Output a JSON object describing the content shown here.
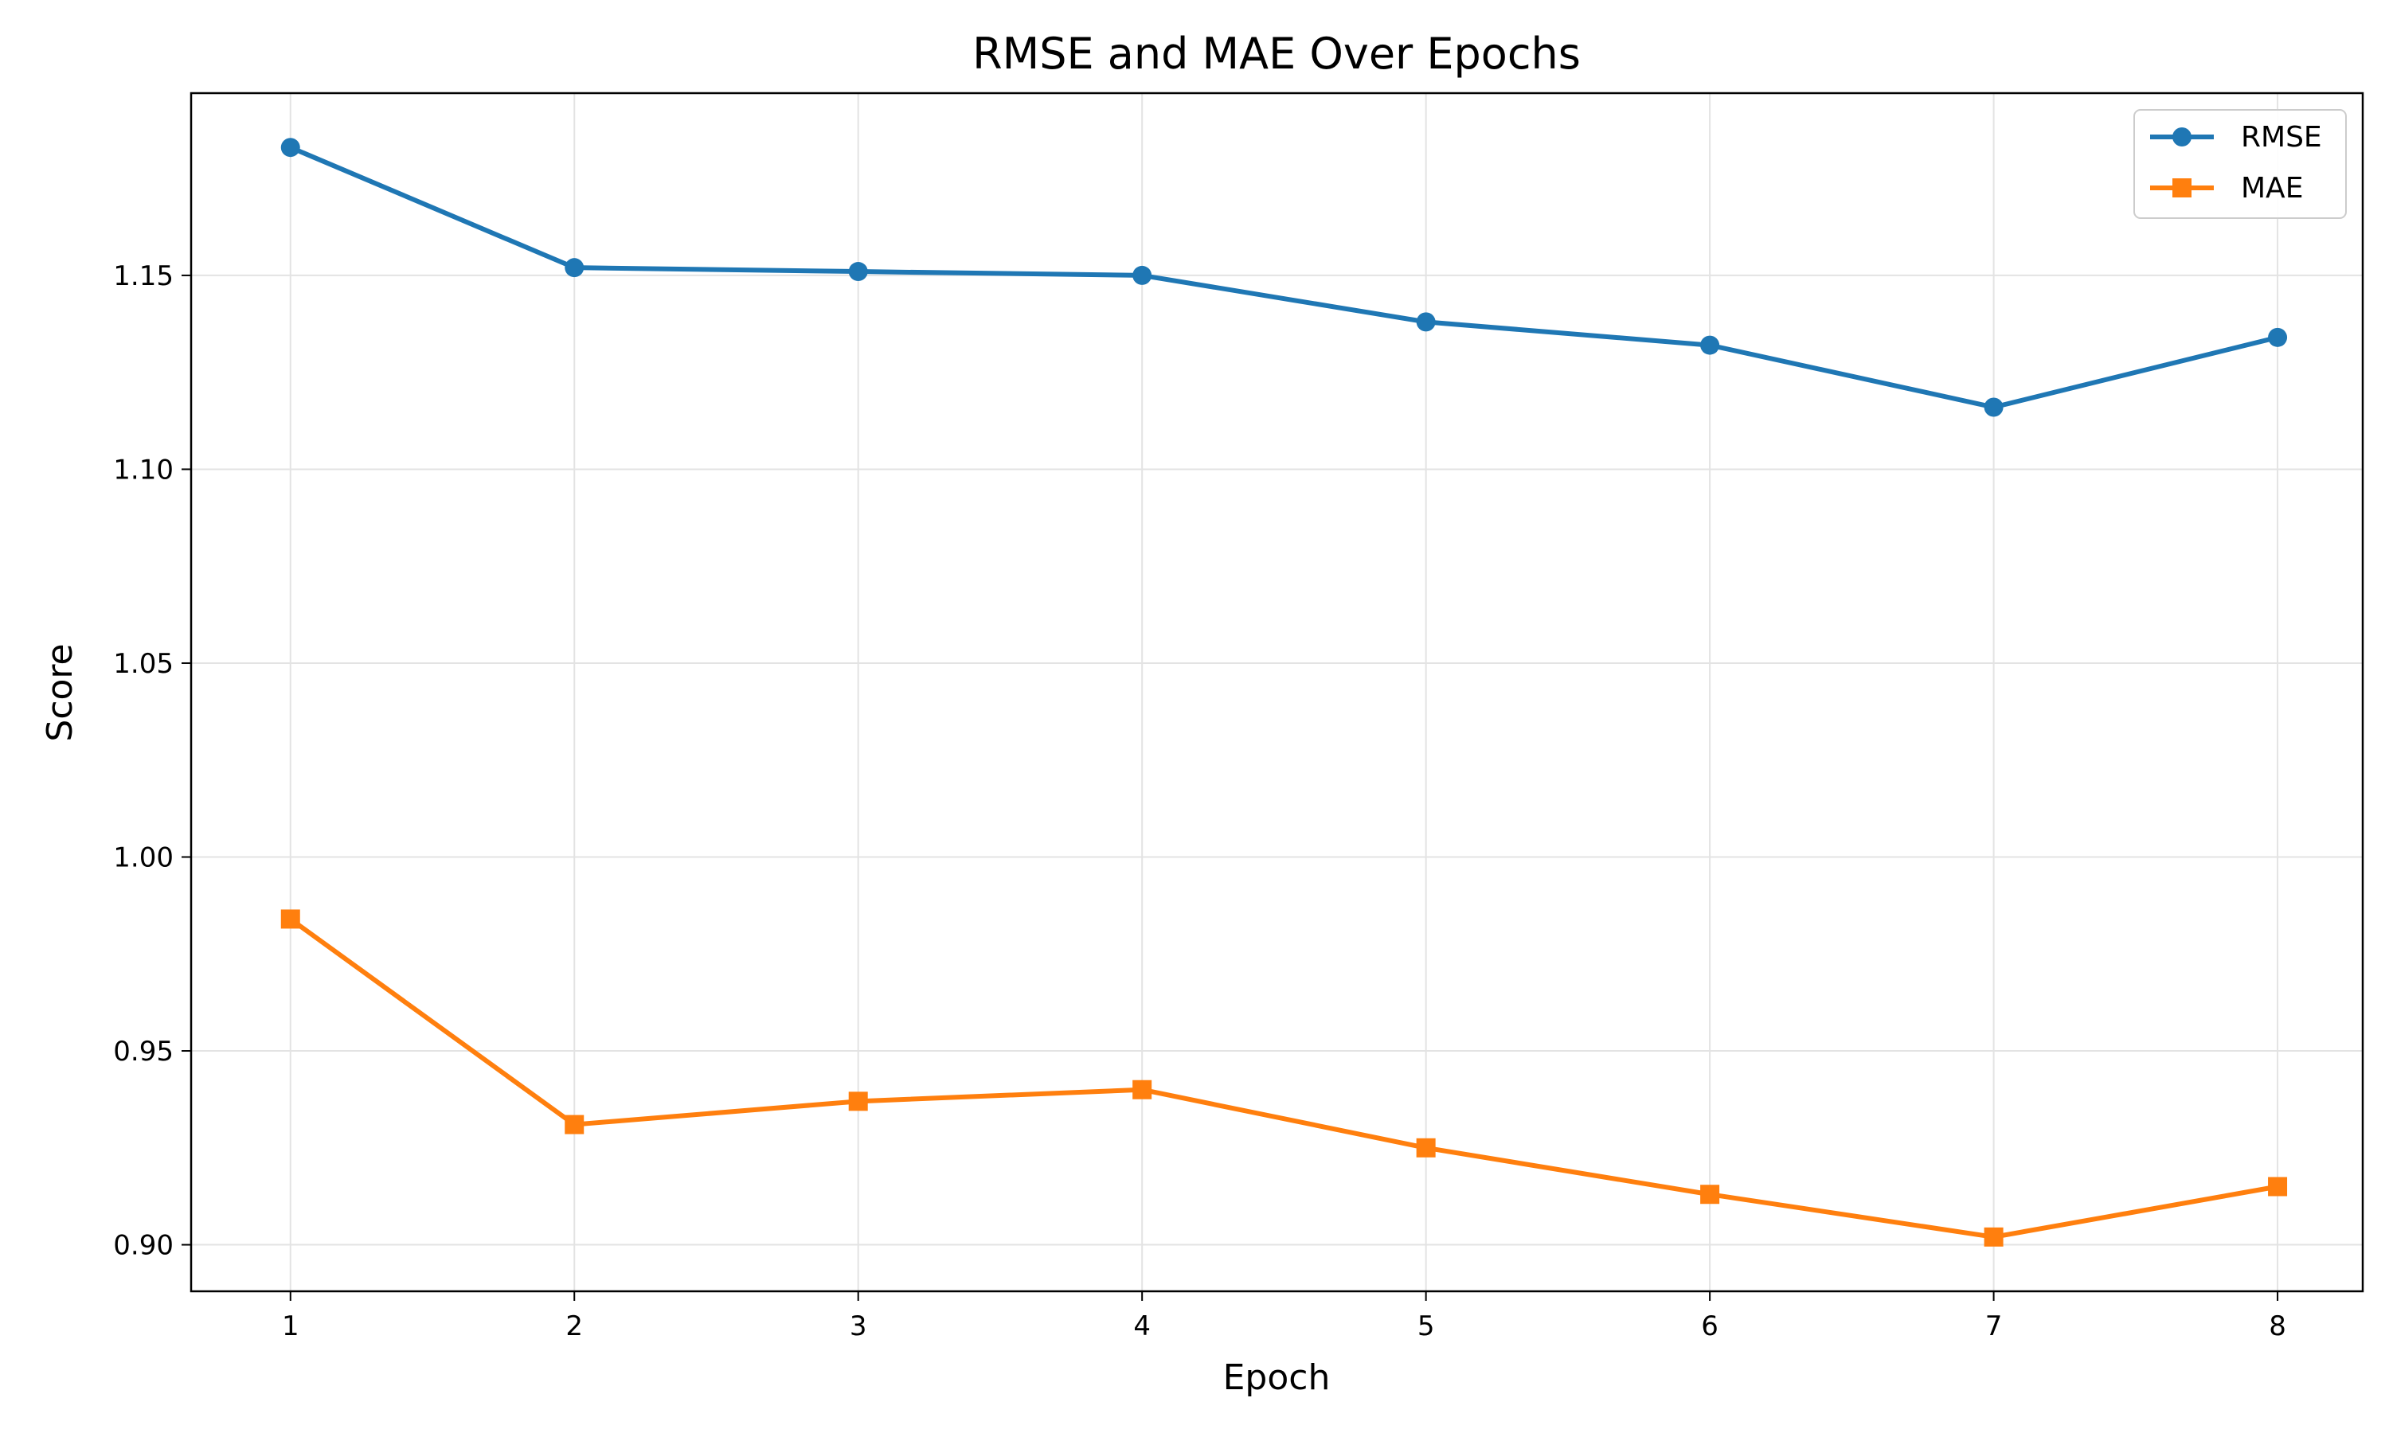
{
  "chart_data": {
    "type": "line",
    "title": "RMSE and MAE Over Epochs",
    "xlabel": "Epoch",
    "ylabel": "Score",
    "x": [
      1,
      2,
      3,
      4,
      5,
      6,
      7,
      8
    ],
    "xticks": [
      "1",
      "2",
      "3",
      "4",
      "5",
      "6",
      "7",
      "8"
    ],
    "xlim": [
      0.65,
      8.3
    ],
    "ylim": [
      0.888,
      1.197
    ],
    "yticks": [
      0.9,
      0.95,
      1.0,
      1.05,
      1.1,
      1.15
    ],
    "ytick_labels": [
      "0.90",
      "0.95",
      "1.00",
      "1.05",
      "1.10",
      "1.15"
    ],
    "grid": true,
    "legend_position": "top-right",
    "series": [
      {
        "name": "RMSE",
        "color": "#1f77b4",
        "marker": "circle",
        "values": [
          1.183,
          1.152,
          1.151,
          1.15,
          1.138,
          1.132,
          1.116,
          1.134
        ]
      },
      {
        "name": "MAE",
        "color": "#ff7f0e",
        "marker": "square",
        "values": [
          0.984,
          0.931,
          0.937,
          0.94,
          0.925,
          0.913,
          0.902,
          0.915
        ]
      }
    ]
  }
}
